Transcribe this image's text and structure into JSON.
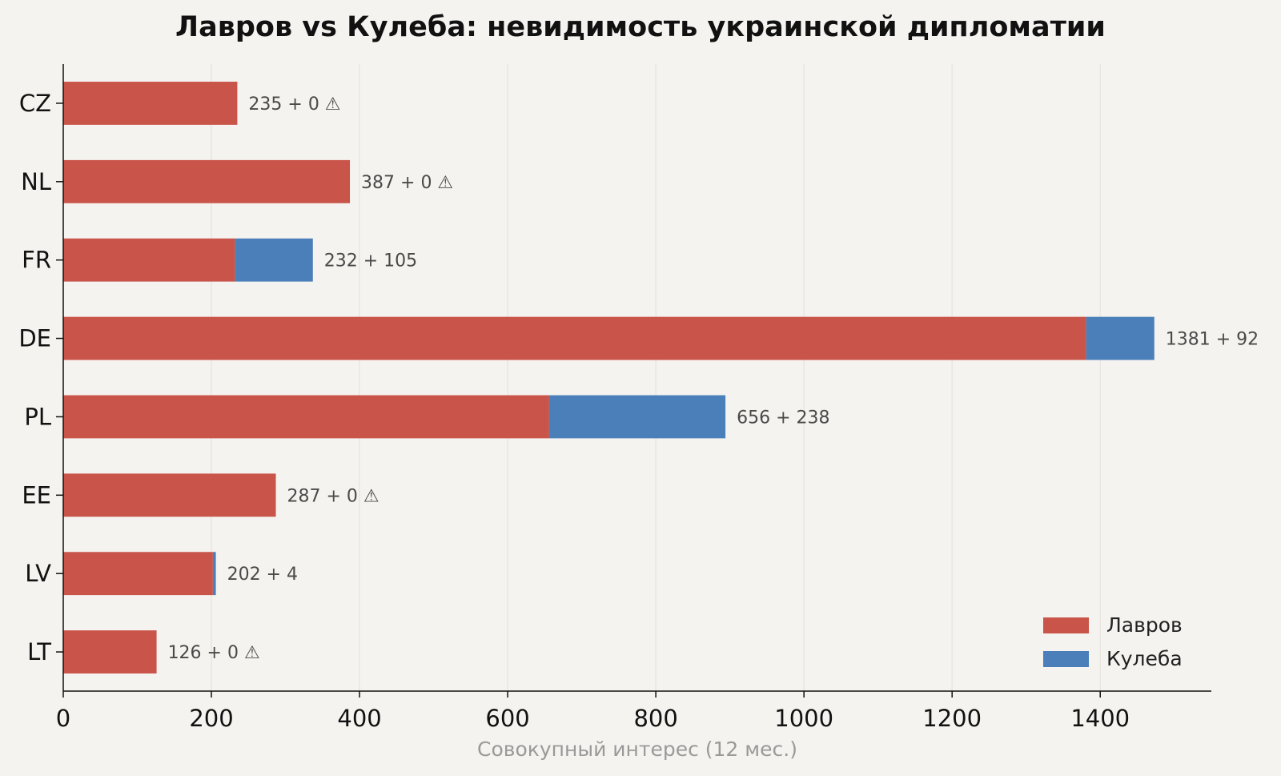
{
  "chart_data": {
    "type": "bar",
    "orientation": "horizontal",
    "stacked": true,
    "title": "Лавров vs Кулеба: невидимость украинской дипломатии",
    "xlabel": "Совокупный интерес (12 мес.)",
    "ylabel": "",
    "xlim": [
      0,
      1550
    ],
    "xticks": [
      0,
      200,
      400,
      600,
      800,
      1000,
      1200,
      1400
    ],
    "grid": "vertical",
    "legend_position": "bottom-right",
    "categories": [
      "CZ",
      "NL",
      "FR",
      "DE",
      "PL",
      "EE",
      "LV",
      "LT"
    ],
    "series": [
      {
        "name": "Лавров",
        "color": "#c9544a",
        "values": [
          235,
          387,
          232,
          1381,
          656,
          287,
          202,
          126
        ]
      },
      {
        "name": "Кулеба",
        "color": "#4a7fba",
        "values": [
          0,
          0,
          105,
          92,
          238,
          0,
          4,
          0
        ]
      }
    ],
    "data_labels": [
      "235 + 0 ⚠",
      "387 + 0 ⚠",
      "232 + 105",
      "1381 + 92",
      "656 + 238",
      "287 + 0 ⚠",
      "202 + 4",
      "126 + 0 ⚠"
    ]
  }
}
